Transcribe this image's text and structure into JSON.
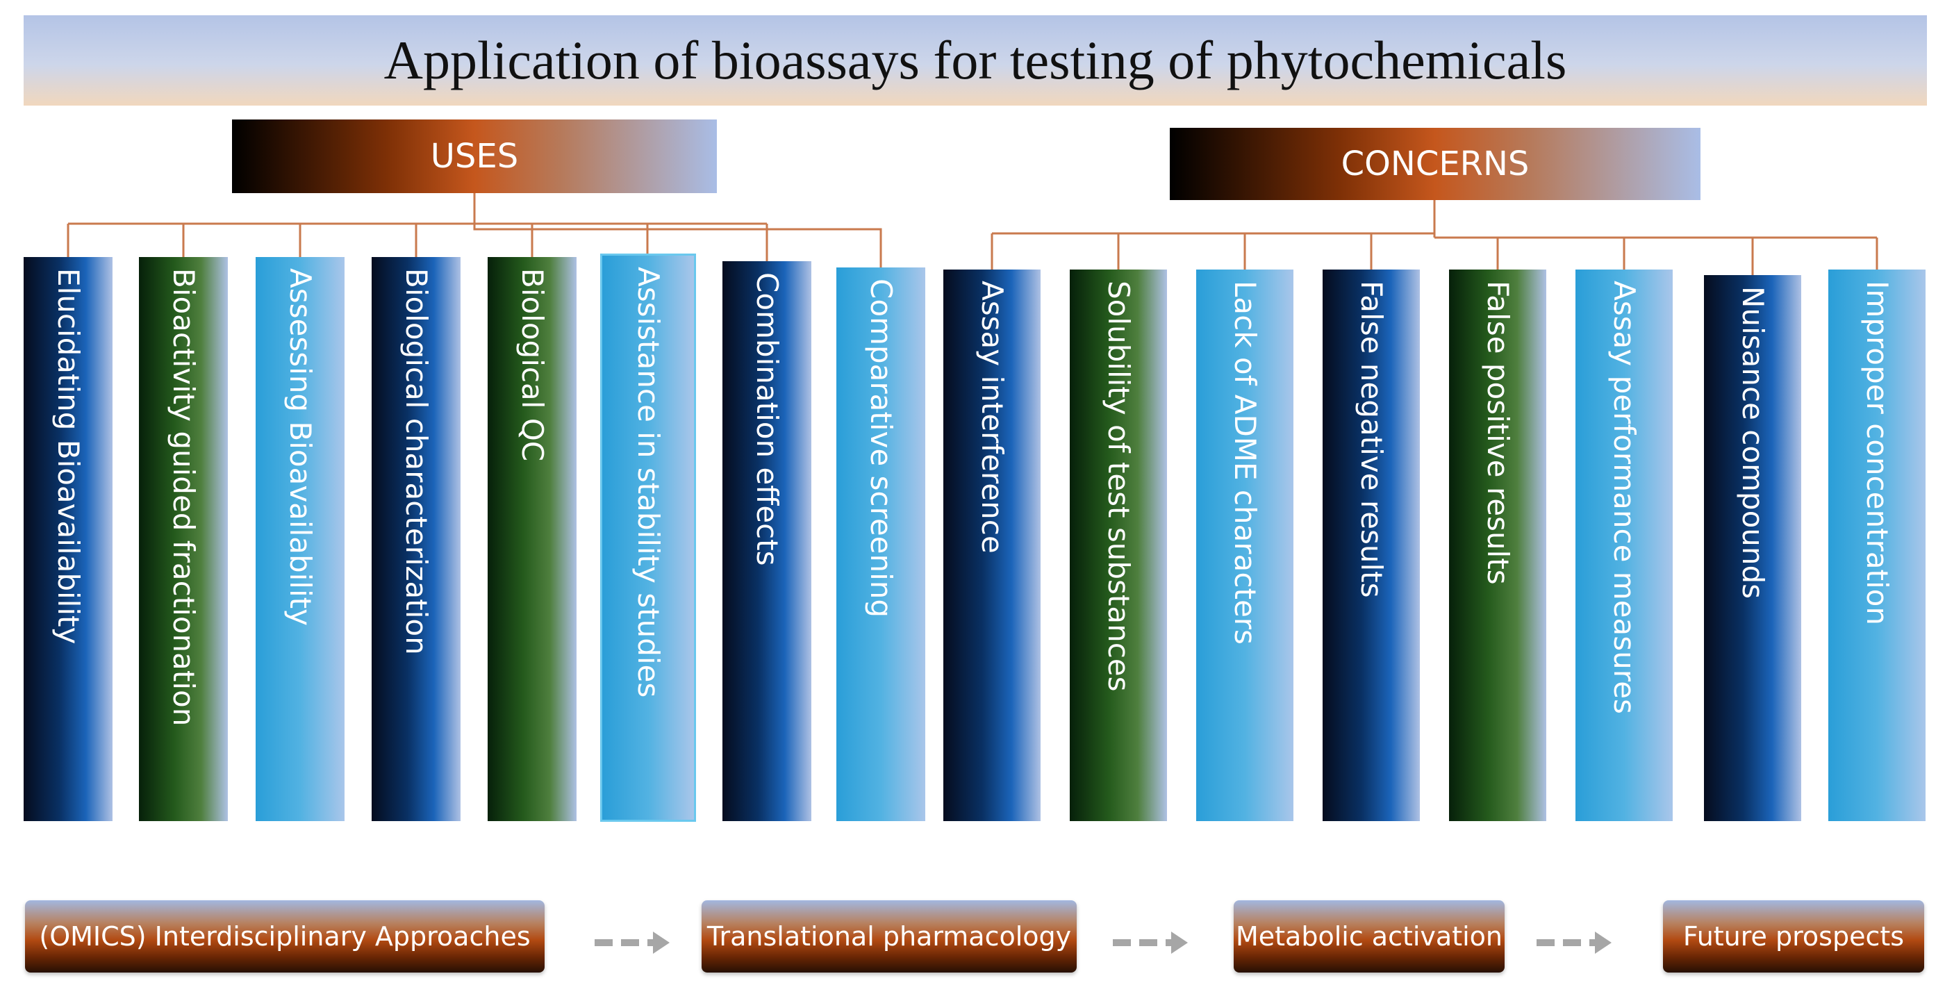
{
  "title": "Application of bioassays for testing of phytochemicals",
  "uses": {
    "header": "USES",
    "items": [
      "Elucidating Bioavailability",
      "Bioactivity guided fractionation",
      "Assessing Bioavailability",
      "Biological characterization",
      "Biological QC",
      "Assistance in stability studies",
      "Combination effects",
      "Comparative screening"
    ]
  },
  "concerns": {
    "header": "CONCERNS",
    "items": [
      "Assay interference",
      "Solubility of test substances",
      "Lack of ADME characters",
      "False negative results",
      "False positive results",
      "Assay performance measures",
      "Nuisance compounds",
      "Improper concentration"
    ]
  },
  "future": {
    "items": [
      "(OMICS) Interdisciplinary Approaches",
      "Translational pharmacology",
      "Metabolic activation",
      "Future prospects"
    ]
  },
  "colors": {
    "connector": "#c97a4e",
    "arrow": "#a6a6a6",
    "navy": "#093063",
    "green": "#245a1c",
    "sky": "#2a9ed8",
    "header_orange": "#c5571d"
  }
}
